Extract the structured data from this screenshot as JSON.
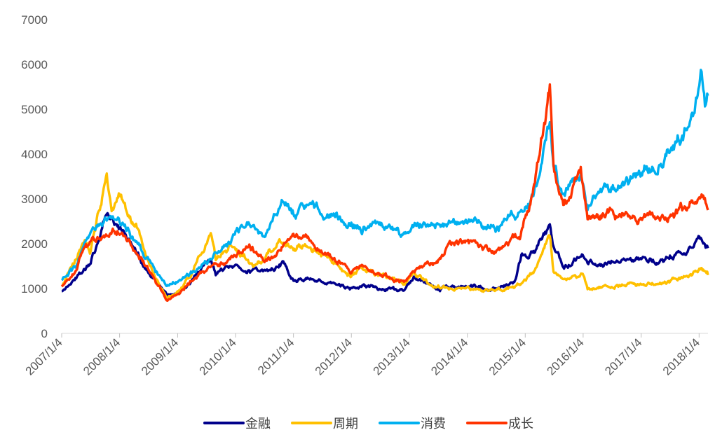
{
  "chart_data": {
    "type": "line",
    "title": "",
    "xlabel": "",
    "ylabel": "",
    "ylim": [
      0,
      7000
    ],
    "yticks": [
      0,
      1000,
      2000,
      3000,
      4000,
      5000,
      6000,
      7000
    ],
    "ytick_labels": [
      "0",
      "1000",
      "2000",
      "3000",
      "4000",
      "5000",
      "6000",
      "7000"
    ],
    "xticks": [
      "2007/1/4",
      "2008/1/4",
      "2009/1/4",
      "2010/1/4",
      "2011/1/4",
      "2012/1/4",
      "2013/1/4",
      "2014/1/4",
      "2015/1/4",
      "2016/1/4",
      "2017/1/4",
      "2018/1/4"
    ],
    "xlim": [
      "2007/1/4",
      "2018/3/1"
    ],
    "grid": false,
    "legend_position": "bottom",
    "series": [
      {
        "name": "金融",
        "color": "#00008B",
        "points": [
          [
            "2007/1/4",
            950
          ],
          [
            "2007/4/1",
            1250
          ],
          [
            "2007/7/1",
            1550
          ],
          [
            "2007/10/15",
            2600
          ],
          [
            "2008/1/4",
            2300
          ],
          [
            "2008/4/1",
            2000
          ],
          [
            "2008/7/1",
            1400
          ],
          [
            "2008/10/28",
            850
          ],
          [
            "2009/1/4",
            880
          ],
          [
            "2009/4/1",
            1150
          ],
          [
            "2009/7/31",
            1600
          ],
          [
            "2009/9/1",
            1300
          ],
          [
            "2010/1/4",
            1500
          ],
          [
            "2010/7/1",
            1350
          ],
          [
            "2010/11/1",
            1550
          ],
          [
            "2011/1/4",
            1200
          ],
          [
            "2011/5/1",
            1200
          ],
          [
            "2011/8/1",
            1150
          ],
          [
            "2012/1/4",
            1000
          ],
          [
            "2012/5/1",
            1050
          ],
          [
            "2012/12/1",
            930
          ],
          [
            "2013/2/1",
            1250
          ],
          [
            "2013/7/1",
            1000
          ],
          [
            "2014/1/4",
            1050
          ],
          [
            "2014/7/1",
            1000
          ],
          [
            "2014/11/1",
            1150
          ],
          [
            "2014/12/15",
            1800
          ],
          [
            "2015/3/1",
            1800
          ],
          [
            "2015/6/8",
            2400
          ],
          [
            "2015/7/1",
            2000
          ],
          [
            "2015/9/1",
            1500
          ],
          [
            "2016/1/1",
            1700
          ],
          [
            "2016/2/1",
            1550
          ],
          [
            "2016/6/1",
            1600
          ],
          [
            "2016/12/1",
            1650
          ],
          [
            "2017/6/1",
            1650
          ],
          [
            "2017/12/1",
            1950
          ],
          [
            "2018/1/20",
            2100
          ],
          [
            "2018/3/1",
            1900
          ]
        ]
      },
      {
        "name": "周期",
        "color": "#FFC000",
        "points": [
          [
            "2007/1/4",
            1050
          ],
          [
            "2007/3/1",
            1400
          ],
          [
            "2007/5/30",
            2150
          ],
          [
            "2007/7/1",
            1850
          ],
          [
            "2007/10/15",
            3450
          ],
          [
            "2007/11/15",
            2700
          ],
          [
            "2008/1/4",
            3200
          ],
          [
            "2008/3/1",
            2700
          ],
          [
            "2008/5/1",
            2300
          ],
          [
            "2008/7/1",
            1600
          ],
          [
            "2008/11/1",
            800
          ],
          [
            "2009/1/4",
            900
          ],
          [
            "2009/4/1",
            1300
          ],
          [
            "2009/8/1",
            2200
          ],
          [
            "2009/9/1",
            1600
          ],
          [
            "2009/12/1",
            2000
          ],
          [
            "2010/5/1",
            1500
          ],
          [
            "2010/11/1",
            2100
          ],
          [
            "2011/1/4",
            1900
          ],
          [
            "2011/4/1",
            2000
          ],
          [
            "2011/8/1",
            1700
          ],
          [
            "2012/1/4",
            1300
          ],
          [
            "2012/3/1",
            1450
          ],
          [
            "2012/12/1",
            1100
          ],
          [
            "2013/2/1",
            1350
          ],
          [
            "2013/6/1",
            1050
          ],
          [
            "2014/1/4",
            1000
          ],
          [
            "2014/7/1",
            950
          ],
          [
            "2014/12/1",
            1100
          ],
          [
            "2015/3/1",
            1400
          ],
          [
            "2015/6/8",
            2100
          ],
          [
            "2015/7/1",
            1400
          ],
          [
            "2015/9/1",
            1200
          ],
          [
            "2016/1/1",
            1300
          ],
          [
            "2016/2/1",
            1000
          ],
          [
            "2016/6/1",
            1050
          ],
          [
            "2016/12/1",
            1100
          ],
          [
            "2017/6/1",
            1100
          ],
          [
            "2017/12/1",
            1350
          ],
          [
            "2018/1/15",
            1400
          ],
          [
            "2018/3/1",
            1300
          ]
        ]
      },
      {
        "name": "消费",
        "color": "#00B0F0",
        "points": [
          [
            "2007/1/4",
            1200
          ],
          [
            "2007/4/1",
            1450
          ],
          [
            "2007/6/1",
            2100
          ],
          [
            "2007/10/15",
            2500
          ],
          [
            "2008/1/4",
            2550
          ],
          [
            "2008/3/1",
            2300
          ],
          [
            "2008/6/1",
            1750
          ],
          [
            "2008/10/28",
            1050
          ],
          [
            "2009/1/4",
            1150
          ],
          [
            "2009/6/1",
            1500
          ],
          [
            "2009/12/1",
            2000
          ],
          [
            "2010/1/4",
            2200
          ],
          [
            "2010/4/1",
            2400
          ],
          [
            "2010/7/1",
            2150
          ],
          [
            "2010/11/1",
            2950
          ],
          [
            "2011/1/4",
            2650
          ],
          [
            "2011/4/1",
            2800
          ],
          [
            "2011/8/1",
            2600
          ],
          [
            "2012/1/4",
            2500
          ],
          [
            "2012/3/1",
            2300
          ],
          [
            "2012/7/1",
            2450
          ],
          [
            "2012/12/1",
            2200
          ],
          [
            "2013/2/1",
            2450
          ],
          [
            "2013/6/1",
            2450
          ],
          [
            "2014/1/4",
            2500
          ],
          [
            "2014/7/1",
            2350
          ],
          [
            "2014/12/1",
            2700
          ],
          [
            "2015/3/1",
            3100
          ],
          [
            "2015/6/8",
            4700
          ],
          [
            "2015/7/1",
            3700
          ],
          [
            "2015/9/1",
            3000
          ],
          [
            "2015/12/20",
            3650
          ],
          [
            "2016/2/1",
            2900
          ],
          [
            "2016/6/1",
            3200
          ],
          [
            "2016/12/1",
            3500
          ],
          [
            "2017/6/1",
            3900
          ],
          [
            "2017/12/1",
            4800
          ],
          [
            "2018/1/20",
            5750
          ],
          [
            "2018/2/10",
            5050
          ],
          [
            "2018/3/1",
            5300
          ]
        ]
      },
      {
        "name": "成长",
        "color": "#FF3300",
        "points": [
          [
            "2007/1/4",
            1050
          ],
          [
            "2007/4/1",
            1400
          ],
          [
            "2007/6/1",
            1900
          ],
          [
            "2007/10/15",
            2150
          ],
          [
            "2008/1/4",
            2350
          ],
          [
            "2008/3/1",
            2100
          ],
          [
            "2008/6/1",
            1600
          ],
          [
            "2008/11/1",
            750
          ],
          [
            "2009/1/4",
            900
          ],
          [
            "2009/6/1",
            1350
          ],
          [
            "2009/12/1",
            1650
          ],
          [
            "2010/4/1",
            1950
          ],
          [
            "2010/7/1",
            1600
          ],
          [
            "2010/11/1",
            1950
          ],
          [
            "2011/1/4",
            2150
          ],
          [
            "2011/4/1",
            2050
          ],
          [
            "2011/8/1",
            1800
          ],
          [
            "2012/1/4",
            1400
          ],
          [
            "2012/3/1",
            1500
          ],
          [
            "2012/12/1",
            1150
          ],
          [
            "2013/2/1",
            1400
          ],
          [
            "2013/6/1",
            1600
          ],
          [
            "2013/9/1",
            1950
          ],
          [
            "2014/1/4",
            2000
          ],
          [
            "2014/7/1",
            1900
          ],
          [
            "2014/12/1",
            2200
          ],
          [
            "2015/3/1",
            3200
          ],
          [
            "2015/6/8",
            5400
          ],
          [
            "2015/7/1",
            3700
          ],
          [
            "2015/9/1",
            2800
          ],
          [
            "2015/12/20",
            3500
          ],
          [
            "2016/2/1",
            2500
          ],
          [
            "2016/6/1",
            2700
          ],
          [
            "2016/12/1",
            2650
          ],
          [
            "2017/6/1",
            2600
          ],
          [
            "2017/12/1",
            2900
          ],
          [
            "2018/1/15",
            3050
          ],
          [
            "2018/3/1",
            2750
          ]
        ]
      }
    ]
  }
}
